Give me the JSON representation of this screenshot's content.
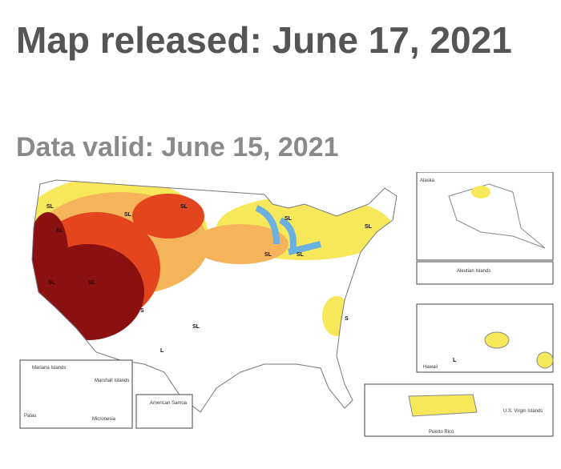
{
  "header": {
    "title": "Map released: June 17, 2021",
    "subtitle": "Data valid: June 15, 2021"
  },
  "map": {
    "labels": [
      "SL",
      "SL",
      "SL",
      "SL",
      "SL",
      "SL",
      "SL",
      "SL",
      "SL",
      "SL",
      "SL",
      "S",
      "S",
      "L",
      "L"
    ],
    "insets": {
      "alaska": "Alaska",
      "aleutian": "Aleutian Islands",
      "hawaii": "Hawaii",
      "puerto_rico": "Puerto Rico",
      "virgin_islands": "U.S. Virgin Islands",
      "mariana": "Mariana Islands",
      "marshall": "Marshall Islands",
      "palau": "Palau",
      "micronesia": "Micronesia",
      "samoa": "American Samoa"
    }
  }
}
